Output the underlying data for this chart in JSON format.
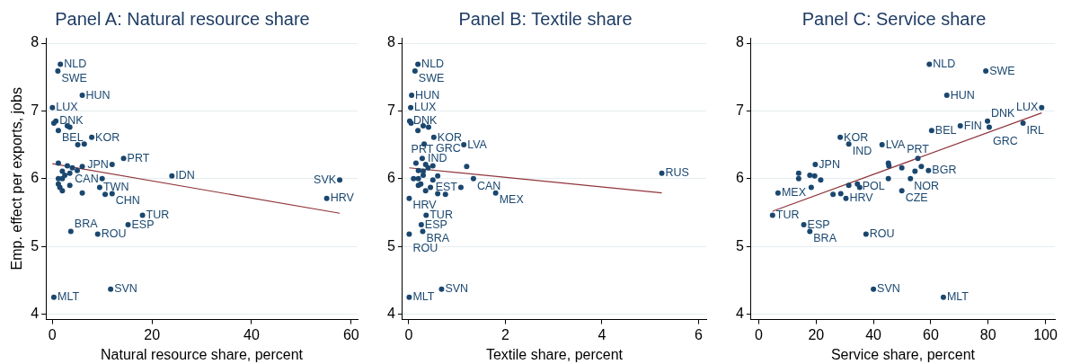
{
  "chart_data": [
    {
      "type": "scatter",
      "title": "Panel A: Natural resource share",
      "xlabel": "Natural resource share, percent",
      "ylabel": "Emp. effect per exports, jobs",
      "xlim": [
        -1.3,
        61.3
      ],
      "xticks": [
        0,
        20,
        40,
        60
      ],
      "ylim": [
        3.92,
        8.08
      ],
      "yticks": [
        4,
        5,
        6,
        7,
        8
      ],
      "grid": "y",
      "legend": false,
      "series": [
        {
          "marker": "circle",
          "color": "#1a476f",
          "x": [
            1.6,
            1.1,
            6.0,
            0.0,
            0.7,
            0.3,
            3.0,
            3.5,
            1.2,
            7.9,
            6.4,
            5.1,
            14.3,
            12.0,
            1.2,
            3.0,
            6.0,
            4.0,
            5.0,
            2.0,
            3.5,
            2.5,
            24.0,
            10.0,
            1.2,
            2.0,
            57.7,
            3.5,
            1.2,
            1.5,
            9.5,
            2.0,
            6.0,
            12.0,
            10.6,
            55.1,
            18.1,
            15.2,
            3.7,
            9.1,
            11.7,
            0.3
          ],
          "values": [
            7.69,
            7.59,
            7.23,
            7.05,
            6.85,
            6.82,
            6.78,
            6.76,
            6.71,
            6.61,
            6.51,
            6.5,
            6.3,
            6.21,
            6.23,
            6.19,
            6.18,
            6.16,
            6.12,
            6.11,
            6.08,
            6.05,
            6.04,
            6.0,
            6.0,
            6.0,
            5.98,
            5.9,
            5.92,
            5.87,
            5.87,
            5.82,
            5.79,
            5.78,
            5.77,
            5.71,
            5.46,
            5.32,
            5.22,
            5.18,
            4.37,
            4.25
          ],
          "value_labels": [
            "NLD",
            "SWE",
            "HUN",
            "LUX",
            "DNK",
            null,
            null,
            null,
            "BEL",
            "KOR",
            null,
            null,
            "PRT",
            "JPN",
            null,
            null,
            null,
            null,
            null,
            null,
            null,
            null,
            "IDN",
            "CAN",
            null,
            null,
            "SVK",
            null,
            null,
            null,
            "TWN",
            null,
            null,
            "CHN",
            null,
            "HRV",
            "TUR",
            "ESP",
            "BRA",
            "ROU",
            "SVN",
            "MLT"
          ]
        },
        {
          "type": "line",
          "marker": "none",
          "color": "#90353b",
          "x": [
            0,
            57.7
          ],
          "values": [
            6.22,
            5.49
          ]
        }
      ]
    },
    {
      "type": "scatter",
      "title": "Panel B: Textile share",
      "xlabel": "Textile share, percent",
      "xlim": [
        -0.13,
        6.16
      ],
      "xticks": [
        0,
        2,
        4,
        6
      ],
      "ylim": [
        3.92,
        8.08
      ],
      "yticks": [
        4,
        5,
        6,
        7,
        8
      ],
      "grid": "y",
      "legend": false,
      "series": [
        {
          "marker": "circle",
          "color": "#1a476f",
          "x": [
            0.19,
            0.13,
            0.06,
            0.04,
            0.02,
            0.05,
            0.3,
            0.41,
            0.19,
            0.52,
            0.32,
            1.14,
            0.28,
            0.35,
            0.15,
            0.5,
            1.2,
            0.4,
            0.2,
            0.3,
            5.24,
            0.3,
            0.6,
            1.34,
            0.2,
            0.1,
            0.5,
            0.2,
            0.25,
            1.08,
            0.45,
            0.35,
            1.8,
            0.6,
            0.76,
            0.01,
            0.36,
            0.26,
            0.29,
            0.01,
            0.68,
            0.01
          ],
          "values": [
            7.69,
            7.59,
            7.23,
            7.05,
            6.85,
            6.82,
            6.78,
            6.76,
            6.71,
            6.61,
            6.51,
            6.5,
            6.3,
            6.21,
            6.23,
            6.19,
            6.18,
            6.16,
            6.12,
            6.11,
            6.08,
            6.05,
            6.04,
            6.0,
            6.0,
            6.0,
            5.98,
            5.9,
            5.92,
            5.87,
            5.87,
            5.82,
            5.79,
            5.78,
            5.77,
            5.71,
            5.46,
            5.32,
            5.22,
            5.18,
            4.37,
            4.25
          ],
          "value_labels": [
            "NLD",
            "SWE",
            "HUN",
            "LUX",
            "DNK",
            null,
            null,
            "GRC",
            null,
            "KOR",
            "IND",
            "LVA",
            "PRT",
            null,
            null,
            null,
            null,
            null,
            null,
            null,
            "RUS",
            null,
            null,
            "CAN",
            null,
            null,
            null,
            null,
            null,
            "EST",
            null,
            null,
            "MEX",
            null,
            null,
            "HRV",
            "TUR",
            "ESP",
            "BRA",
            "ROU",
            "SVN",
            "MLT"
          ]
        },
        {
          "type": "line",
          "marker": "none",
          "color": "#90353b",
          "x": [
            0.01,
            5.24
          ],
          "values": [
            6.16,
            5.79
          ]
        }
      ]
    },
    {
      "type": "scatter",
      "title": "Panel C: Service share",
      "xlabel": "Service share, percent",
      "xlim": [
        -2.7,
        103.3
      ],
      "xticks": [
        0,
        20,
        40,
        60,
        80,
        100
      ],
      "ylim": [
        3.92,
        8.08
      ],
      "yticks": [
        4,
        5,
        6,
        7,
        8
      ],
      "grid": "y",
      "legend": false,
      "series": [
        {
          "marker": "circle",
          "color": "#1a476f",
          "x": [
            59.5,
            79.2,
            65.6,
            98.7,
            79.8,
            92.2,
            70.3,
            80.4,
            60.3,
            28.4,
            31.4,
            43.0,
            55.5,
            19.7,
            45.2,
            45.4,
            56.7,
            49.9,
            59.2,
            54.5,
            13.9,
            17.8,
            19.5,
            13.9,
            45.2,
            52.9,
            21.6,
            31.4,
            34.4,
            35.2,
            18.3,
            49.9,
            6.7,
            28.6,
            25.9,
            30.4,
            4.8,
            15.7,
            17.8,
            37.4,
            40.0,
            64.4
          ],
          "values": [
            7.69,
            7.59,
            7.23,
            7.05,
            6.85,
            6.82,
            6.78,
            6.76,
            6.71,
            6.61,
            6.51,
            6.5,
            6.3,
            6.21,
            6.23,
            6.19,
            6.18,
            6.16,
            6.12,
            6.11,
            6.08,
            6.05,
            6.04,
            6.0,
            6.0,
            6.0,
            5.98,
            5.9,
            5.92,
            5.87,
            5.87,
            5.82,
            5.79,
            5.78,
            5.77,
            5.71,
            5.46,
            5.32,
            5.22,
            5.18,
            4.37,
            4.25
          ],
          "value_labels": [
            "NLD",
            "SWE",
            "HUN",
            "LUX",
            "DNK",
            "IRL",
            "FIN",
            "GRC",
            "BEL",
            "KOR",
            "IND",
            "LVA",
            "PRT",
            "JPN",
            null,
            null,
            null,
            null,
            "BGR",
            null,
            null,
            null,
            null,
            null,
            "POL",
            "NOR",
            null,
            null,
            null,
            null,
            null,
            "CZE",
            "MEX",
            null,
            null,
            "HRV",
            "TUR",
            "ESP",
            "BRA",
            "ROU",
            "SVN",
            "MLT"
          ]
        },
        {
          "type": "line",
          "marker": "none",
          "color": "#90353b",
          "x": [
            4.8,
            98.7
          ],
          "values": [
            5.52,
            6.97
          ]
        }
      ]
    }
  ]
}
